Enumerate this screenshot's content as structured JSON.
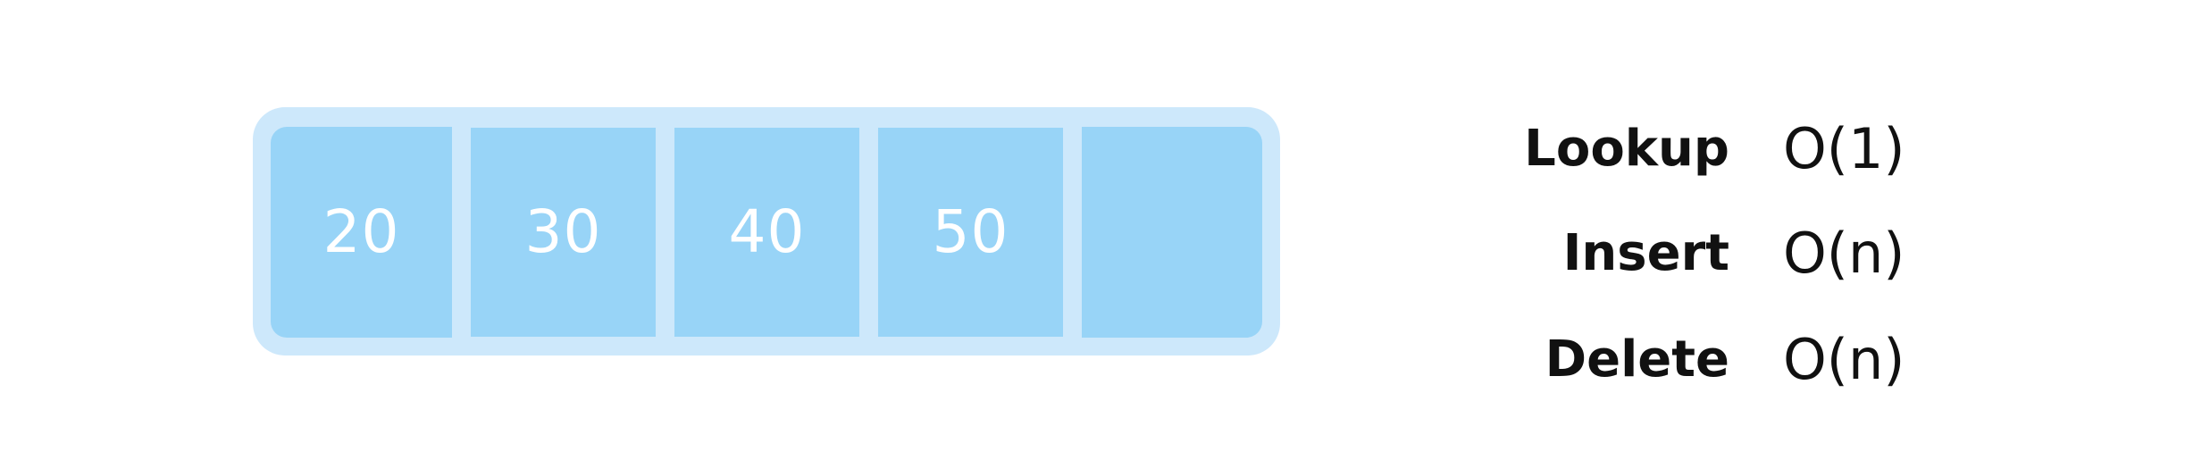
{
  "array": {
    "cells": [
      "20",
      "30",
      "40",
      "50",
      ""
    ],
    "colors": {
      "outer": "#cde8fb",
      "cell": "#98d4f7",
      "text": "#ffffff"
    }
  },
  "complexity": {
    "rows": [
      {
        "operation": "Lookup",
        "value": "O(1)"
      },
      {
        "operation": "Insert",
        "value": "O(n)"
      },
      {
        "operation": "Delete",
        "value": "O(n)"
      }
    ],
    "text_color": "#111111"
  }
}
